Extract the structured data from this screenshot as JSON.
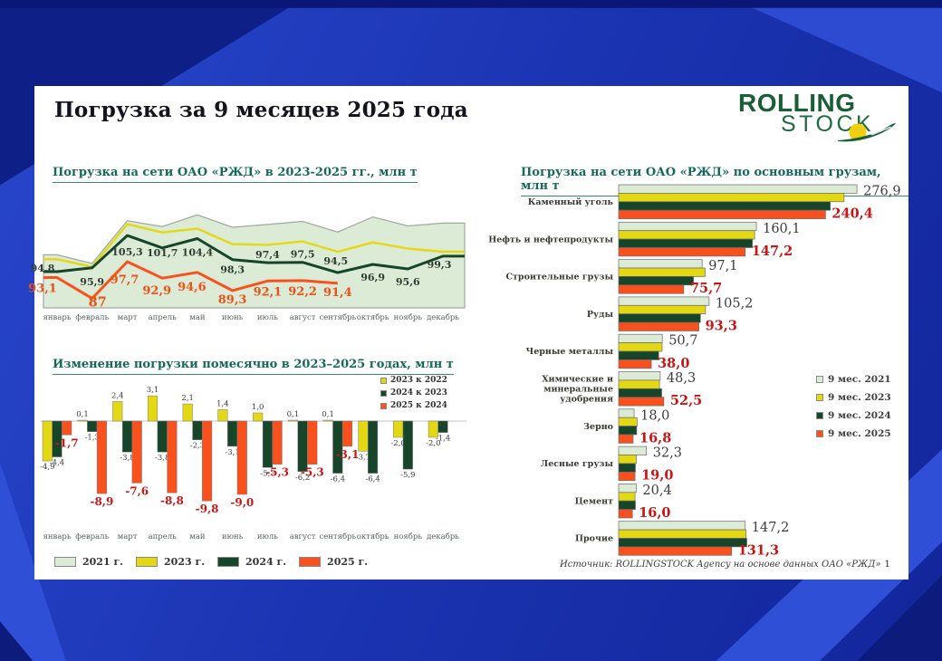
{
  "slide": {
    "title": "Погрузка за 9 месяцев 2025 года",
    "page_number": "1",
    "source": "Источник: ROLLINGSTOCK Agency на основе данных ОАО «РЖД»",
    "logo": {
      "top": "ROLLING",
      "bottom": "STOCK"
    }
  },
  "colors": {
    "y2021": "#dcebd5",
    "y2021_stroke": "#9fa99f",
    "y2023": "#e3d813",
    "y2024": "#16452a",
    "y2025": "#f9511d",
    "red_label": "#c81616",
    "gray_label": "#3d3d3d",
    "green_label": "#2f3e34",
    "orange_label": "#ee5019",
    "teal_title": "#16695a"
  },
  "months": [
    "январь",
    "февраль",
    "март",
    "апрель",
    "май",
    "июнь",
    "июль",
    "август",
    "сентябрь",
    "октябрь",
    "ноябрь",
    "декабрь"
  ],
  "legend_years": [
    "2021 г.",
    "2023 г.",
    "2024 г.",
    "2025 г."
  ],
  "chart_data": [
    {
      "type": "area",
      "title": "Погрузка на сети ОАО «РЖД» в 2023-2025 гг., млн т",
      "categories": [
        "январь",
        "февраль",
        "март",
        "апрель",
        "май",
        "июнь",
        "июль",
        "август",
        "сентябрь",
        "октябрь",
        "ноябрь",
        "декабрь"
      ],
      "series": [
        {
          "name": "2021 г.",
          "style": "area",
          "color_key": "y2021",
          "values": [
            99.7,
            97.2,
            109.6,
            107.9,
            111.3,
            107.7,
            108.5,
            109.4,
            106.3,
            110.7,
            108.1,
            108.9
          ],
          "values_estimated": true
        },
        {
          "name": "2023 г.",
          "style": "line",
          "color_key": "y2023",
          "values": [
            98.4,
            96.2,
            108.6,
            106.2,
            107.3,
            102.8,
            102.6,
            103.6,
            100.6,
            103.3,
            101.5,
            100.6
          ],
          "values_estimated": true
        },
        {
          "name": "2024 г.",
          "style": "line",
          "color_key": "y2024",
          "labels": [
            "94,8",
            "95,9",
            "105,3",
            "101,7",
            "104,4",
            "98,3",
            "97,4",
            "97,5",
            "94,5",
            "96,9",
            "95,6",
            "99,3"
          ]
        },
        {
          "name": "2025 г.",
          "style": "line",
          "color_key": "y2025",
          "labels": [
            "93,1",
            "87",
            "97,7",
            "92,9",
            "94,6",
            "89,3",
            "92,1",
            "92,2",
            "91,4"
          ]
        }
      ]
    },
    {
      "type": "bar",
      "title": "Изменение погрузки помесячно в 2023–2025 годах, млн т",
      "categories": [
        "январь",
        "февраль",
        "март",
        "апрель",
        "май",
        "июнь",
        "июль",
        "август",
        "сентябрь",
        "октябрь",
        "ноябрь",
        "декабрь"
      ],
      "series": [
        {
          "name": "2023 к 2022",
          "color_key": "y2023",
          "labels": [
            "-4,9",
            "0,1",
            "2,4",
            "3,1",
            "2,1",
            "1,4",
            "1,0",
            "0,1",
            "0,1",
            "-3,7",
            "-2,0",
            "-2,0"
          ]
        },
        {
          "name": "2024 к 2023",
          "color_key": "y2024",
          "labels": [
            "-4,4",
            "-1,3",
            "-3,8",
            "-3,8",
            "-2,3",
            "-3,1",
            "-5,7",
            "-6,2",
            "-6,4",
            "-6,4",
            "-5,9",
            "-1,4"
          ]
        },
        {
          "name": "2025 к 2024",
          "color_key": "y2025",
          "labels": [
            "-1,7",
            "-8,9",
            "-7,6",
            "-8,8",
            "-9,8",
            "-9,0",
            "-5,3",
            "-5,3",
            "-3,1"
          ]
        }
      ]
    },
    {
      "type": "bar-horizontal",
      "title": "Погрузка на сети ОАО «РЖД» по основным грузам, млн т",
      "categories": [
        "Каменный уголь",
        "Нефть и нефтепродукты",
        "Строительные грузы",
        "Руды",
        "Черные металлы",
        "Химические и минеральные удобрения",
        "Зерно",
        "Лесные грузы",
        "Цемент",
        "Прочие"
      ],
      "category_lines": [
        [
          "Каменный уголь"
        ],
        [
          "Нефть и нефтепродукты"
        ],
        [
          "Строительные грузы"
        ],
        [
          "Руды"
        ],
        [
          "Черные металлы"
        ],
        [
          "Химические и",
          "минеральные",
          "удобрения"
        ],
        [
          "Зерно"
        ],
        [
          "Лесные грузы"
        ],
        [
          "Цемент"
        ],
        [
          "Прочие"
        ]
      ],
      "series": [
        {
          "name": "9 мес. 2021",
          "color_key": "y2021",
          "labels": [
            "276,9",
            "160,1",
            "97,1",
            "105,2",
            "50,7",
            "48,3",
            "18,0",
            "32,3",
            "20,4",
            "147,2"
          ]
        },
        {
          "name": "9 мес. 2023",
          "color_key": "y2023",
          "values": [
            262,
            158,
            100.5,
            101,
            50.5,
            47.5,
            21.5,
            20.5,
            19,
            148
          ],
          "values_estimated": true
        },
        {
          "name": "9 мес. 2024",
          "color_key": "y2024",
          "values": [
            246,
            155.5,
            87,
            95,
            46.5,
            50,
            21,
            19.5,
            19.5,
            149
          ],
          "values_estimated": true
        },
        {
          "name": "9 мес. 2025",
          "color_key": "y2025",
          "labels": [
            "240,4",
            "147,2",
            "75,7",
            "93,3",
            "38,0",
            "52,5",
            "16,8",
            "19,0",
            "16,0",
            "131,3"
          ]
        }
      ]
    }
  ]
}
